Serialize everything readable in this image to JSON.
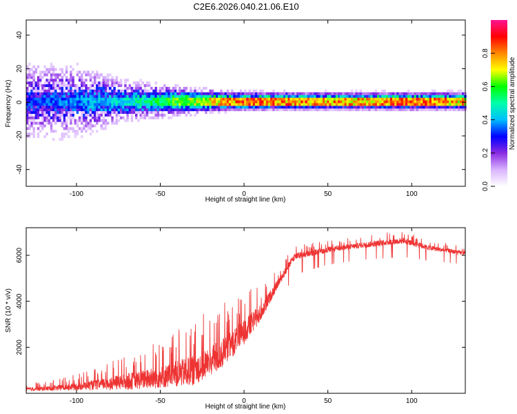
{
  "title": "C2E6.2026.040.21.06.E10",
  "chart_data": [
    {
      "type": "heatmap",
      "name": "spectrogram",
      "xlabel": "Height of straight line (km)",
      "ylabel": "Frequency (Hz)",
      "xlim": [
        -130,
        132
      ],
      "ylim": [
        -50,
        49
      ],
      "xticks": [
        -100,
        -50,
        0,
        50,
        100
      ],
      "yticks": [
        -40,
        -20,
        0,
        20,
        40
      ],
      "xtick_labels": [
        "-100",
        "-50",
        "0",
        "50",
        "100"
      ],
      "ytick_labels": [
        "-40",
        "-20",
        "0",
        "20",
        "40"
      ],
      "colorbar": {
        "label": "Normalized spectral amplitude",
        "range": [
          0,
          1
        ],
        "ticks": [
          0.0,
          0.2,
          0.4,
          0.6,
          0.8
        ],
        "tick_labels": [
          "0.0",
          "0.2",
          "0.4",
          "0.6",
          "0.8"
        ],
        "colors": [
          "#ffffff",
          "#d9b3ff",
          "#8a2be2",
          "#0000ff",
          "#00bfff",
          "#00ffaa",
          "#00ff00",
          "#ffff00",
          "#ff8800",
          "#ff0000",
          "#ff1493"
        ]
      },
      "ridge": {
        "center_frequency": 0,
        "peak_amplitude_profile": [
          {
            "x": -130,
            "amp": 0.35
          },
          {
            "x": -100,
            "amp": 0.4
          },
          {
            "x": -70,
            "amp": 0.5
          },
          {
            "x": -40,
            "amp": 0.65
          },
          {
            "x": -20,
            "amp": 0.8
          },
          {
            "x": 0,
            "amp": 0.9
          },
          {
            "x": 30,
            "amp": 0.88
          },
          {
            "x": 70,
            "amp": 0.85
          },
          {
            "x": 95,
            "amp": 0.92
          },
          {
            "x": 132,
            "amp": 0.82
          }
        ],
        "spread_hz": [
          {
            "x": -130,
            "spread": 45
          },
          {
            "x": -100,
            "spread": 40
          },
          {
            "x": -70,
            "spread": 20
          },
          {
            "x": -40,
            "spread": 12
          },
          {
            "x": -10,
            "spread": 6
          },
          {
            "x": 20,
            "spread": 5
          },
          {
            "x": 132,
            "spread": 5
          }
        ]
      }
    },
    {
      "type": "line",
      "name": "snr",
      "xlabel": "Height of straight line (km)",
      "ylabel": "SNR (10 * v/v)",
      "xlim": [
        -130,
        132
      ],
      "ylim": [
        0,
        7200
      ],
      "xticks": [
        -100,
        -50,
        0,
        50,
        100
      ],
      "yticks": [
        2000,
        4000,
        6000
      ],
      "xtick_labels": [
        "-100",
        "-50",
        "0",
        "50",
        "100"
      ],
      "ytick_labels": [
        "2000",
        "4000",
        "6000"
      ],
      "series": [
        {
          "name": "SNR",
          "color": "#ee3333",
          "envelope": [
            {
              "x": -130,
              "base": 150,
              "noise": 250
            },
            {
              "x": -110,
              "base": 200,
              "noise": 400
            },
            {
              "x": -90,
              "base": 300,
              "noise": 700
            },
            {
              "x": -70,
              "base": 400,
              "noise": 1200
            },
            {
              "x": -50,
              "base": 550,
              "noise": 1600
            },
            {
              "x": -30,
              "base": 800,
              "noise": 2200
            },
            {
              "x": -15,
              "base": 1400,
              "noise": 2200
            },
            {
              "x": 0,
              "base": 2500,
              "noise": 1800
            },
            {
              "x": 10,
              "base": 3400,
              "noise": 1200
            },
            {
              "x": 20,
              "base": 4700,
              "noise": 600
            },
            {
              "x": 30,
              "base": 5900,
              "noise": 500
            },
            {
              "x": 50,
              "base": 6200,
              "noise": 400
            },
            {
              "x": 70,
              "base": 6400,
              "noise": 400
            },
            {
              "x": 95,
              "base": 6600,
              "noise": 450
            },
            {
              "x": 110,
              "base": 6300,
              "noise": 350
            },
            {
              "x": 132,
              "base": 6050,
              "noise": 300
            }
          ]
        }
      ]
    }
  ]
}
